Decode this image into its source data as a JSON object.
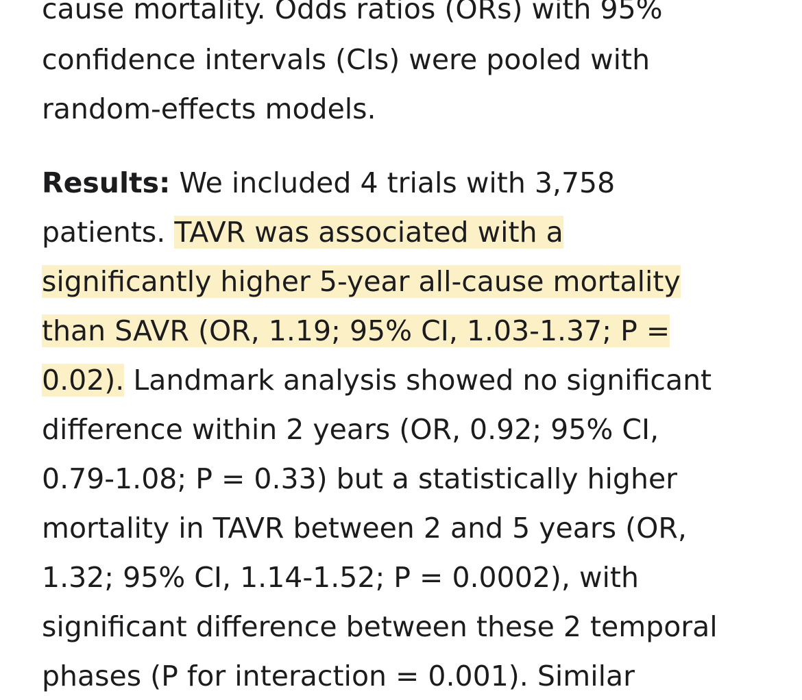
{
  "abstract": {
    "methods_lines": [
      "cause mortality. Odds ratios (ORs) with 95%",
      "confidence intervals (CIs) were pooled with",
      "random-effects models."
    ],
    "results_label": "Results:",
    "results_line1_rest": " We included 4 trials with 3,758",
    "results_line2_plain": "patients. ",
    "results_line2_highlight": "TAVR was associated with a",
    "results_line3_highlight": "significantly higher 5-year all-cause mortality",
    "results_line4_highlight": "than SAVR (OR, 1.19; 95% CI, 1.03-1.37; P =",
    "results_line5_highlight": "0.02).",
    "results_line5_plain": " Landmark analysis showed no significant",
    "results_lines_rest": [
      "difference within 2 years (OR, 0.92; 95% CI,",
      "0.79-1.08; P = 0.33) but a statistically higher",
      "mortality in TAVR between 2 and 5 years (OR,",
      "1.32; 95% CI, 1.14-1.52; P = 0.0002), with",
      "significant difference between these 2 temporal",
      "phases (P for interaction = 0.001). Similar"
    ],
    "highlight_color": "#fcf0c6",
    "text_color": "#1c1c1e"
  }
}
